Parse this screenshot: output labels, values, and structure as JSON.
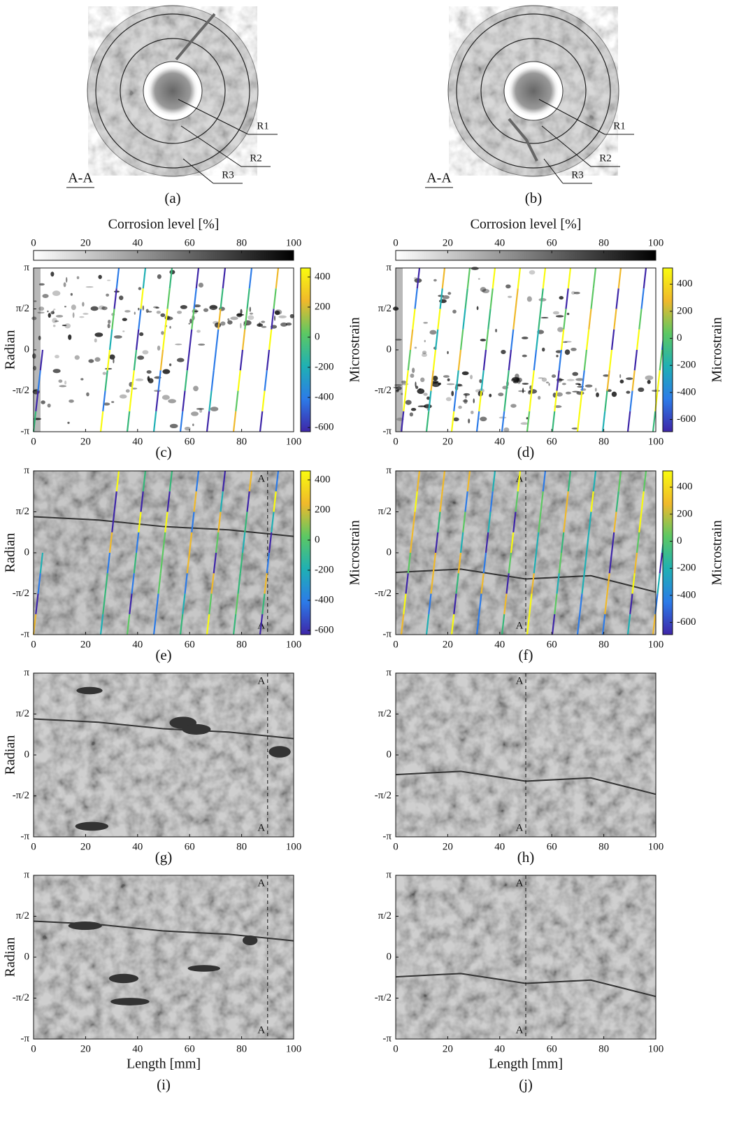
{
  "figure": {
    "captions": [
      "(a)",
      "(b)",
      "(c)",
      "(d)",
      "(e)",
      "(f)",
      "(g)",
      "(h)",
      "(i)",
      "(j)"
    ],
    "section_label": "A-A",
    "rings": [
      "R1",
      "R2",
      "R3"
    ],
    "section_marker": "A",
    "corrosion_colorbar": {
      "title": "Corrosion level [%]",
      "ticks": [
        0,
        20,
        40,
        60,
        80,
        100
      ]
    },
    "microstrain_colorbar": {
      "label": "Microstrain",
      "left": {
        "lim": [
          -628,
          460
        ],
        "ticks": [
          400,
          200,
          0,
          -200,
          -400,
          -600
        ]
      },
      "right": {
        "lim": [
          -690,
          520
        ],
        "ticks": [
          400,
          200,
          0,
          -200,
          -400,
          -600
        ]
      }
    },
    "axes": {
      "y_label": "Radian",
      "x_label": "Length [mm]",
      "x_lim": [
        0,
        100
      ],
      "x_ticks": [
        0,
        20,
        40,
        60,
        80,
        100
      ],
      "y_ticks": [
        "π",
        "π/2",
        "0",
        "-π/2",
        "-π"
      ]
    }
  }
}
